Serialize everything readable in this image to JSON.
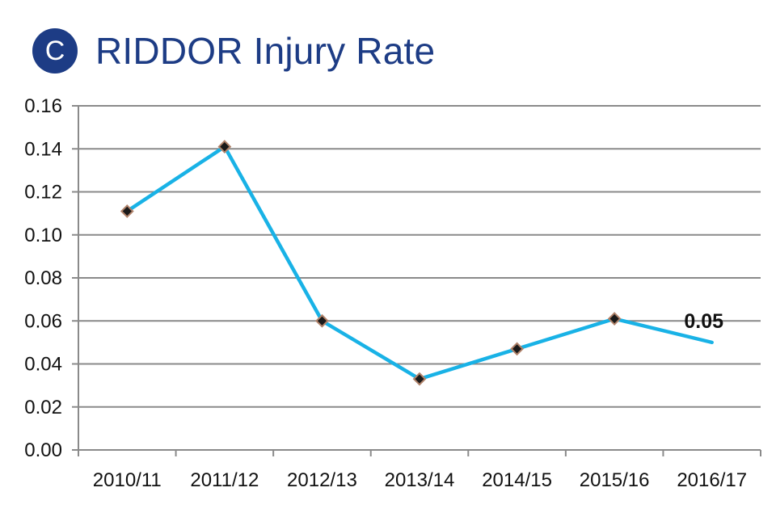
{
  "header": {
    "badge_letter": "C",
    "title": "RIDDOR Injury Rate"
  },
  "colors": {
    "brand": "#1d3c85",
    "line": "#19b2e6",
    "marker_fill": "#1a1a1a",
    "marker_stroke": "#b0826a",
    "grid": "#8a8a8a"
  },
  "chart_data": {
    "type": "line",
    "title": "RIDDOR Injury Rate",
    "xlabel": "",
    "ylabel": "",
    "categories": [
      "2010/11",
      "2011/12",
      "2012/13",
      "2013/14",
      "2014/15",
      "2015/16",
      "2016/17"
    ],
    "series": [
      {
        "name": "RIDDOR Injury Rate",
        "values": [
          0.111,
          0.141,
          0.06,
          0.033,
          0.047,
          0.061,
          0.05
        ],
        "markers": [
          true,
          true,
          true,
          true,
          true,
          true,
          false
        ]
      }
    ],
    "ylim": [
      0,
      0.16
    ],
    "yticks": [
      "0.00",
      "0.02",
      "0.04",
      "0.06",
      "0.08",
      "0.10",
      "0.12",
      "0.14",
      "0.16"
    ],
    "grid": true,
    "legend": "none",
    "annotations": [
      {
        "category": "2016/17",
        "text": "0.05"
      }
    ]
  }
}
